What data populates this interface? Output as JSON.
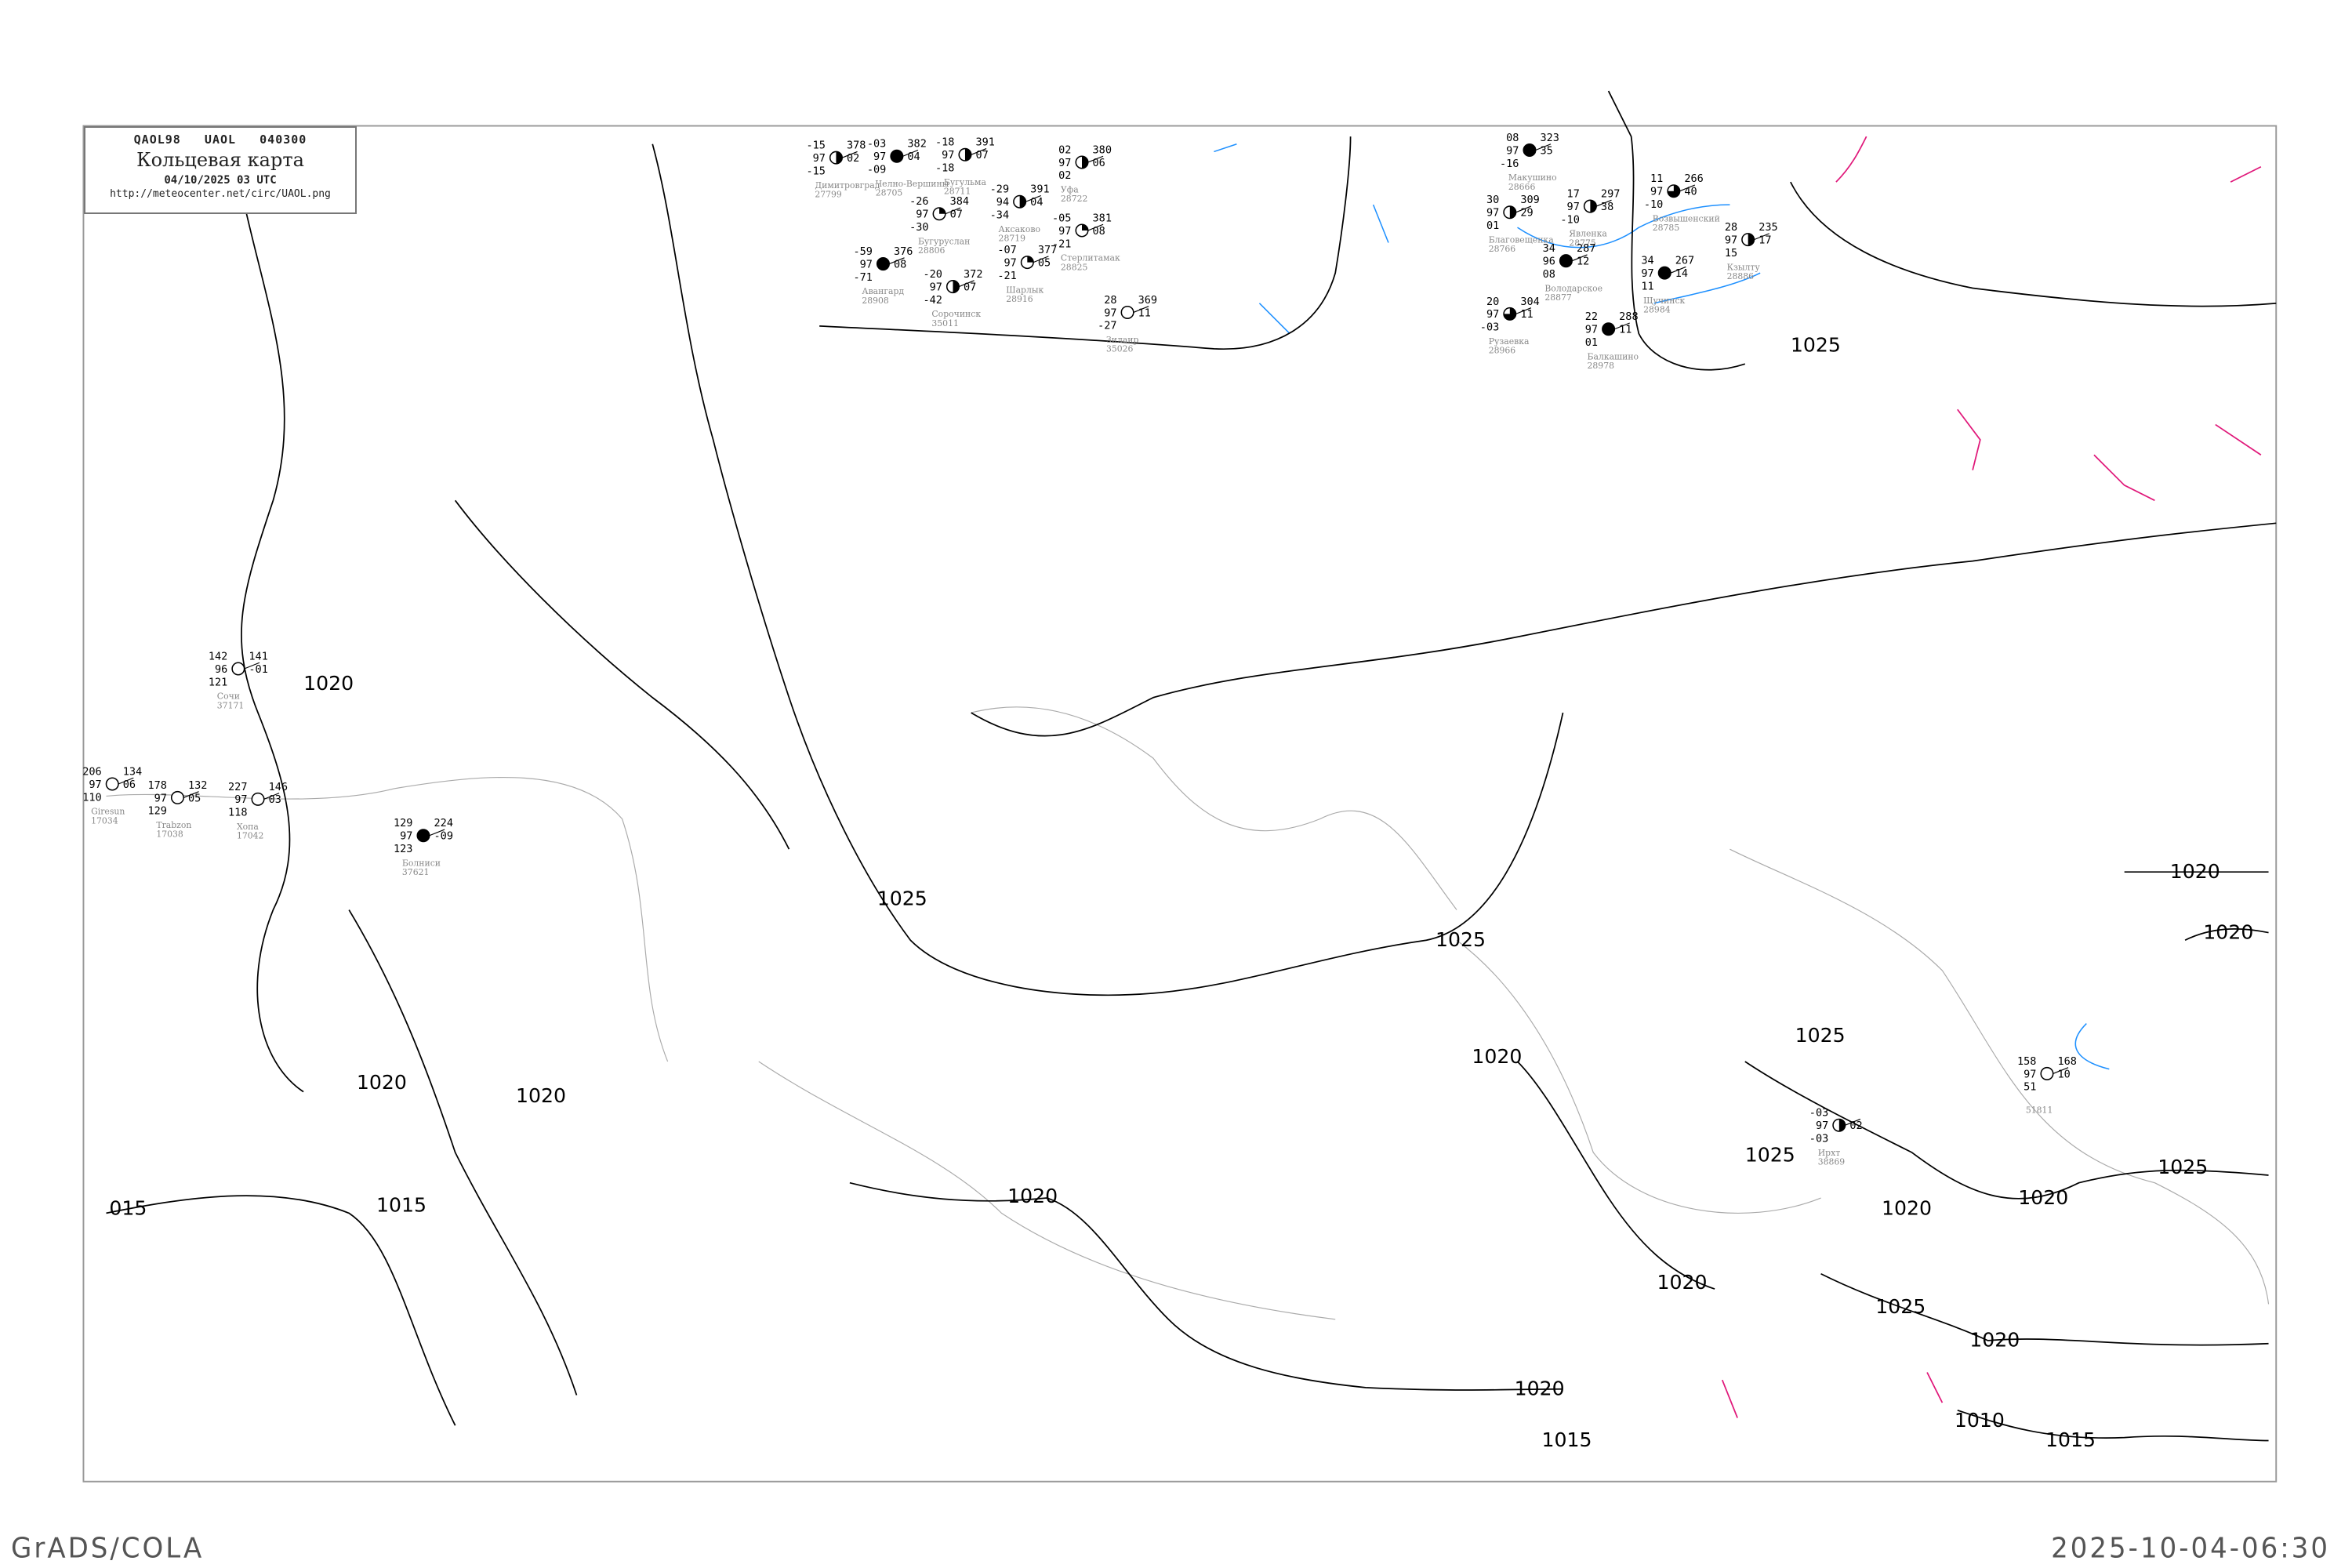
{
  "header": {
    "code_line": "QAOL98   UAOL   040300",
    "title": "Кольцевая карта",
    "datetime": "04/10/2025 03 UTC",
    "url": "http://meteocenter.net/circ/UAOL.png"
  },
  "footer": {
    "left": "GrADS/COLA",
    "right": "2025-10-04-06:30"
  },
  "colors": {
    "isobar": "#000000",
    "coastline": "#aaaaaa",
    "river": "#1e90ff",
    "front": "#e0187a",
    "snow_marker": "#2dbe3c",
    "fog_marker": "#ffff99",
    "rain_marker": "#3a8ee6"
  },
  "isobar_labels": [
    "1020",
    "1025",
    "1020",
    "1020",
    "015",
    "1015",
    "1020",
    "1020",
    "1020",
    "1025",
    "1025",
    "1020",
    "1025",
    "1020",
    "1025",
    "1020",
    "1020",
    "1020",
    "1010",
    "1015",
    "1015",
    "1025",
    "1020",
    "1025"
  ],
  "stations": [
    {
      "name": "Макушино",
      "index": "28666",
      "tl": "08",
      "ml": "97",
      "bl": "-16",
      "tr": "323",
      "mr": "35",
      "cloud": "full"
    },
    {
      "name": "Благовещенка",
      "index": "28766",
      "tl": "30",
      "ml": "97",
      "bl": "01",
      "tr": "309",
      "mr": "29",
      "cloud": "half"
    },
    {
      "name": "Явленка",
      "index": "28775",
      "tl": "17",
      "ml": "97",
      "bl": "-10",
      "tr": "297",
      "mr": "38",
      "cloud": "half"
    },
    {
      "name": "Возвышенский",
      "index": "28785",
      "tl": "11",
      "ml": "97",
      "bl": "-10",
      "tr": "266",
      "mr": "40",
      "cloud": "three-quarter"
    },
    {
      "name": "Кзылту",
      "index": "28886",
      "tl": "28",
      "ml": "97",
      "bl": "15",
      "tr": "235",
      "mr": "17",
      "cloud": "half"
    },
    {
      "name": "Володарское",
      "index": "28877",
      "tl": "34",
      "ml": "96",
      "bl": "08",
      "tr": "287",
      "mr": "12",
      "cloud": "full"
    },
    {
      "name": "Щучинск",
      "index": "28984",
      "tl": "34",
      "ml": "97",
      "bl": "11",
      "tr": "267",
      "mr": "14",
      "cloud": "full"
    },
    {
      "name": "Рузаевка",
      "index": "28966",
      "tl": "20",
      "ml": "97",
      "bl": "-03",
      "tr": "304",
      "mr": "11",
      "cloud": "three-quarter"
    },
    {
      "name": "Балкашино",
      "index": "28978",
      "tl": "22",
      "ml": "97",
      "bl": "01",
      "tr": "288",
      "mr": "11",
      "cloud": "full"
    },
    {
      "name": "Димитровград",
      "index": "27799",
      "tl": "-15",
      "ml": "97",
      "bl": "-15",
      "tr": "378",
      "mr": "02",
      "cloud": "half"
    },
    {
      "name": "Челно-Вершины",
      "index": "28705",
      "tl": "-03",
      "ml": "97",
      "bl": "-09",
      "tr": "382",
      "mr": "04",
      "cloud": "full"
    },
    {
      "name": "Бугульма",
      "index": "28711",
      "tl": "-18",
      "ml": "97",
      "bl": "-18",
      "tr": "391",
      "mr": "07",
      "cloud": "half"
    },
    {
      "name": "Уфа",
      "index": "28722",
      "tl": "02",
      "ml": "97",
      "bl": "02",
      "tr": "380",
      "mr": "06",
      "cloud": "half"
    },
    {
      "name": "Аксаково",
      "index": "28719",
      "tl": "-29",
      "ml": "94",
      "bl": "-34",
      "tr": "391",
      "mr": "04",
      "cloud": "half"
    },
    {
      "name": "Бугуруслан",
      "index": "28806",
      "tl": "-26",
      "ml": "97",
      "bl": "-30",
      "tr": "384",
      "mr": "07",
      "cloud": "quarter"
    },
    {
      "name": "Стерлитамак",
      "index": "28825",
      "tl": "-05",
      "ml": "97",
      "bl": "-21",
      "tr": "381",
      "mr": "08",
      "cloud": "quarter"
    },
    {
      "name": "Авангард",
      "index": "28908",
      "tl": "-59",
      "ml": "97",
      "bl": "-71",
      "tr": "376",
      "mr": "08",
      "cloud": "full"
    },
    {
      "name": "Шарлык",
      "index": "28916",
      "tl": "-07",
      "ml": "97",
      "bl": "-21",
      "tr": "377",
      "mr": "05",
      "cloud": "quarter"
    },
    {
      "name": "Сорочинск",
      "index": "35011",
      "tl": "-20",
      "ml": "97",
      "bl": "-42",
      "tr": "372",
      "mr": "07",
      "cloud": "half"
    },
    {
      "name": "Зилаир",
      "index": "35026",
      "tl": "28",
      "ml": "97",
      "bl": "-27",
      "tr": "369",
      "mr": "11",
      "cloud": "empty"
    },
    {
      "name": "Сочи",
      "index": "37171",
      "tl": "142",
      "ml": "96",
      "bl": "121",
      "tr": "141",
      "mr": "-01",
      "cloud": "empty"
    },
    {
      "name": "Giresun",
      "index": "17034",
      "tl": "206",
      "ml": "97",
      "bl": "110",
      "tr": "134",
      "mr": "06",
      "cloud": "empty"
    },
    {
      "name": "Trabzon",
      "index": "17038",
      "tl": "178",
      "ml": "97",
      "bl": "129",
      "tr": "132",
      "mr": "05",
      "cloud": "empty"
    },
    {
      "name": "Хопа",
      "index": "17042",
      "tl": "227",
      "ml": "97",
      "bl": "118",
      "tr": "146",
      "mr": "03",
      "cloud": "empty"
    },
    {
      "name": "Болниси",
      "index": "37621",
      "tl": "129",
      "ml": "97",
      "bl": "123",
      "tr": "224",
      "mr": "-09",
      "cloud": "full"
    },
    {
      "name": "Ирхт",
      "index": "38869",
      "tl": "-03",
      "ml": "97",
      "bl": "-03",
      "tr": "",
      "mr": "02",
      "cloud": "half"
    },
    {
      "name": "",
      "index": "51811",
      "tl": "158",
      "ml": "97",
      "bl": "51",
      "tr": "168",
      "mr": "10",
      "cloud": "empty"
    }
  ]
}
